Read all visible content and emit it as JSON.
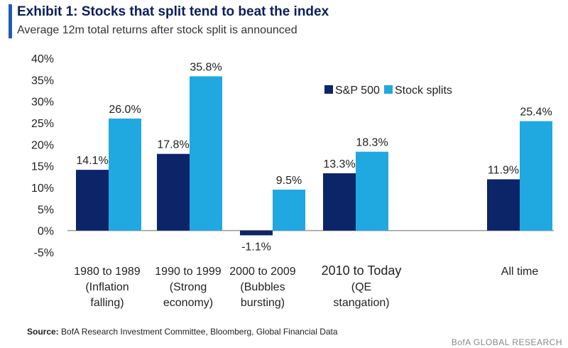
{
  "header": {
    "title": "Exhibit 1: Stocks that split tend to beat the index",
    "subtitle": "Average 12m total returns after stock split is announced"
  },
  "colors": {
    "accent": "#1f5bb8",
    "sp500": "#0c2468",
    "splits": "#20a8e0"
  },
  "chart_data": {
    "type": "bar",
    "title": "Exhibit 1: Stocks that split tend to beat the index",
    "subtitle": "Average 12m total returns after stock split is announced",
    "categories": [
      [
        "1980 to 1989",
        "(Inflation",
        "falling)"
      ],
      [
        "1990 to 1999",
        "(Strong",
        "economy)"
      ],
      [
        "2000 to 2009",
        "(Bubbles",
        "bursting)"
      ],
      [
        "2010 to Today",
        "(QE",
        "stangation)"
      ],
      [
        "All time"
      ]
    ],
    "series": [
      {
        "name": "S&P 500",
        "values": [
          14.1,
          17.8,
          -1.1,
          13.3,
          11.9
        ],
        "labels": [
          "14.1%",
          "17.8%",
          "-1.1%",
          "13.3%",
          "11.9%"
        ]
      },
      {
        "name": "Stock splits",
        "values": [
          26.0,
          35.8,
          9.5,
          18.3,
          25.4
        ],
        "labels": [
          "26.0%",
          "35.8%",
          "9.5%",
          "18.3%",
          "25.4%"
        ]
      }
    ],
    "ylim": [
      -5,
      40
    ],
    "yticks": [
      40,
      35,
      30,
      25,
      20,
      15,
      10,
      5,
      0,
      -5
    ],
    "ytick_labels": [
      "40%",
      "35%",
      "30%",
      "25%",
      "20%",
      "15%",
      "10%",
      "5%",
      "0%",
      "-5%"
    ],
    "grid": false,
    "legend": "top-right"
  },
  "footer": {
    "source_label": "Source:",
    "source_text": "BofA Research Investment Committee, Bloomberg, Global Financial Data",
    "brand": "BofA GLOBAL RESEARCH"
  }
}
